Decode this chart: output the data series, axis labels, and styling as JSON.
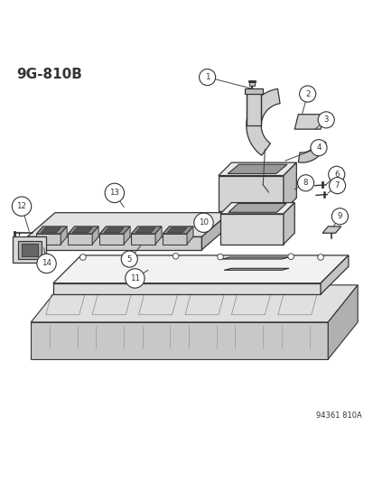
{
  "title": "9G-810B",
  "footer": "94361 810A",
  "background_color": "#ffffff",
  "line_color": "#333333",
  "figsize": [
    4.14,
    5.33
  ],
  "dpi": 100
}
